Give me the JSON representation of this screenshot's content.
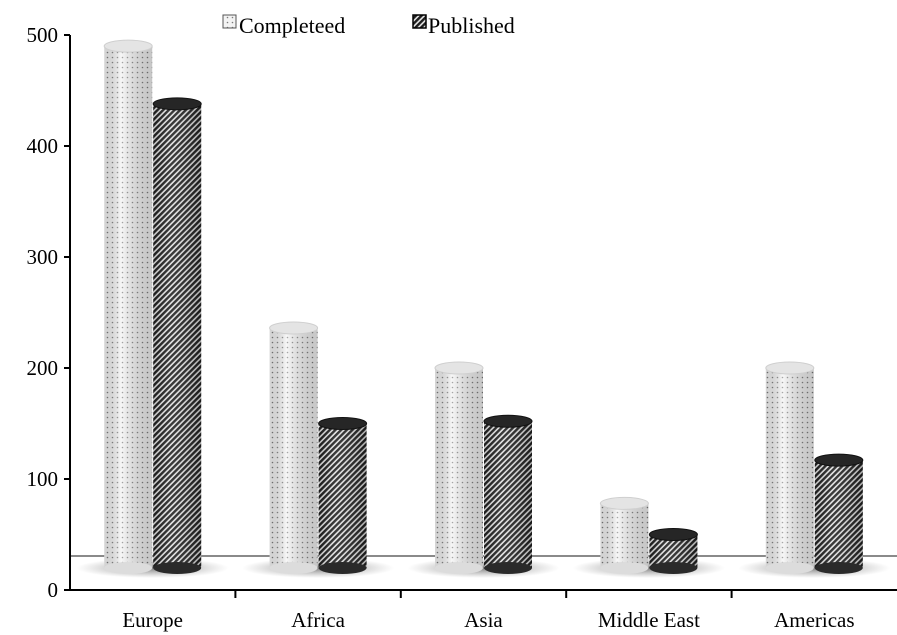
{
  "chart_data": {
    "type": "bar",
    "categories": [
      "Europe",
      "Africa",
      "Asia",
      "Middle East",
      "Americas"
    ],
    "series": [
      {
        "name": "Completeed",
        "values": [
          490,
          236,
          200,
          78,
          200
        ],
        "color": "#f2f2f2",
        "pattern": "dots"
      },
      {
        "name": "Published",
        "values": [
          438,
          150,
          152,
          50,
          117
        ],
        "color": "#2b2b2b",
        "pattern": "diagonal-stripes"
      }
    ],
    "ylim": [
      0,
      500
    ],
    "yticks": [
      0,
      100,
      200,
      300,
      400,
      500
    ],
    "title": "",
    "xlabel": "",
    "ylabel": "",
    "grid": false,
    "legend_position": "top"
  }
}
